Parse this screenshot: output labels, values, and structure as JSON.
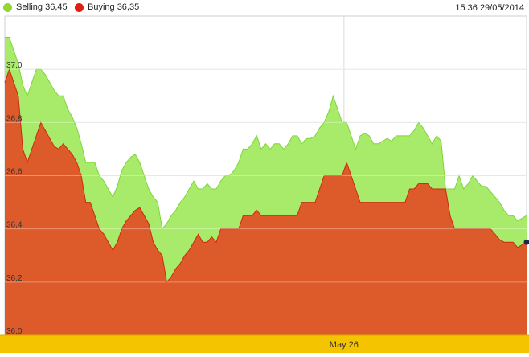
{
  "legend": {
    "selling_label": "Selling 36,45",
    "buying_label": "Buying 36,35",
    "selling_color": "#8fd832",
    "buying_color": "#e21e10"
  },
  "timestamp": "15:36 29/05/2014",
  "chart_data": {
    "type": "area",
    "title": "",
    "xlabel": "",
    "ylabel": "",
    "ylim": [
      36.0,
      37.2
    ],
    "y_ticks": [
      "36,0",
      "36,2",
      "36,4",
      "36,6",
      "36,8",
      "37,0"
    ],
    "y_tick_values": [
      36.0,
      36.2,
      36.4,
      36.6,
      36.8,
      37.0
    ],
    "x_axis_label": "May 26",
    "x_axis_label_position": 0.65,
    "grid": true,
    "legend_position": "top-left",
    "series": [
      {
        "name": "Selling",
        "color": "#a8eb6a",
        "stroke": "#7fd43a",
        "values": [
          37.12,
          37.12,
          37.07,
          37.02,
          36.94,
          36.9,
          36.95,
          37.0,
          37.0,
          36.98,
          36.95,
          36.92,
          36.9,
          36.9,
          36.85,
          36.82,
          36.78,
          36.72,
          36.65,
          36.65,
          36.65,
          36.6,
          36.58,
          36.55,
          36.52,
          36.56,
          36.62,
          36.65,
          36.67,
          36.68,
          36.65,
          36.6,
          36.55,
          36.52,
          36.5,
          36.4,
          36.42,
          36.45,
          36.47,
          36.5,
          36.52,
          36.55,
          36.58,
          36.55,
          36.55,
          36.57,
          36.55,
          36.55,
          36.58,
          36.6,
          36.6,
          36.62,
          36.65,
          36.7,
          36.7,
          36.72,
          36.75,
          36.7,
          36.72,
          36.7,
          36.72,
          36.72,
          36.7,
          36.72,
          36.75,
          36.75,
          36.72,
          36.74,
          36.74,
          36.75,
          36.78,
          36.8,
          36.84,
          36.9,
          36.85,
          36.8,
          36.8,
          36.75,
          36.7,
          36.75,
          36.76,
          36.75,
          36.72,
          36.72,
          36.73,
          36.74,
          36.73,
          36.75,
          36.75,
          36.75,
          36.75,
          36.77,
          36.8,
          36.78,
          36.75,
          36.72,
          36.75,
          36.73,
          36.55,
          36.55,
          36.55,
          36.6,
          36.55,
          36.57,
          36.6,
          36.58,
          36.56,
          36.56,
          36.54,
          36.52,
          36.5,
          36.47,
          36.45,
          36.45,
          36.43,
          36.44,
          36.45
        ]
      },
      {
        "name": "Buying",
        "color": "#dd5a2a",
        "stroke": "#cc2a10",
        "values": [
          36.95,
          37.0,
          36.95,
          36.9,
          36.7,
          36.65,
          36.7,
          36.75,
          36.8,
          36.77,
          36.74,
          36.71,
          36.7,
          36.72,
          36.7,
          36.68,
          36.65,
          36.6,
          36.5,
          36.5,
          36.45,
          36.4,
          36.38,
          36.35,
          36.32,
          36.35,
          36.4,
          36.43,
          36.45,
          36.47,
          36.48,
          36.45,
          36.42,
          36.35,
          36.32,
          36.3,
          36.2,
          36.22,
          36.25,
          36.27,
          36.3,
          36.32,
          36.35,
          36.38,
          36.35,
          36.35,
          36.37,
          36.35,
          36.4,
          36.4,
          36.4,
          36.4,
          36.4,
          36.45,
          36.45,
          36.45,
          36.47,
          36.45,
          36.45,
          36.45,
          36.45,
          36.45,
          36.45,
          36.45,
          36.45,
          36.45,
          36.5,
          36.5,
          36.5,
          36.5,
          36.55,
          36.6,
          36.6,
          36.6,
          36.6,
          36.6,
          36.65,
          36.6,
          36.55,
          36.5,
          36.5,
          36.5,
          36.5,
          36.5,
          36.5,
          36.5,
          36.5,
          36.5,
          36.5,
          36.5,
          36.55,
          36.55,
          36.57,
          36.57,
          36.57,
          36.55,
          36.55,
          36.55,
          36.55,
          36.45,
          36.4,
          36.4,
          36.4,
          36.4,
          36.4,
          36.4,
          36.4,
          36.4,
          36.4,
          36.38,
          36.36,
          36.35,
          36.35,
          36.35,
          36.33,
          36.34,
          36.35
        ]
      }
    ]
  }
}
